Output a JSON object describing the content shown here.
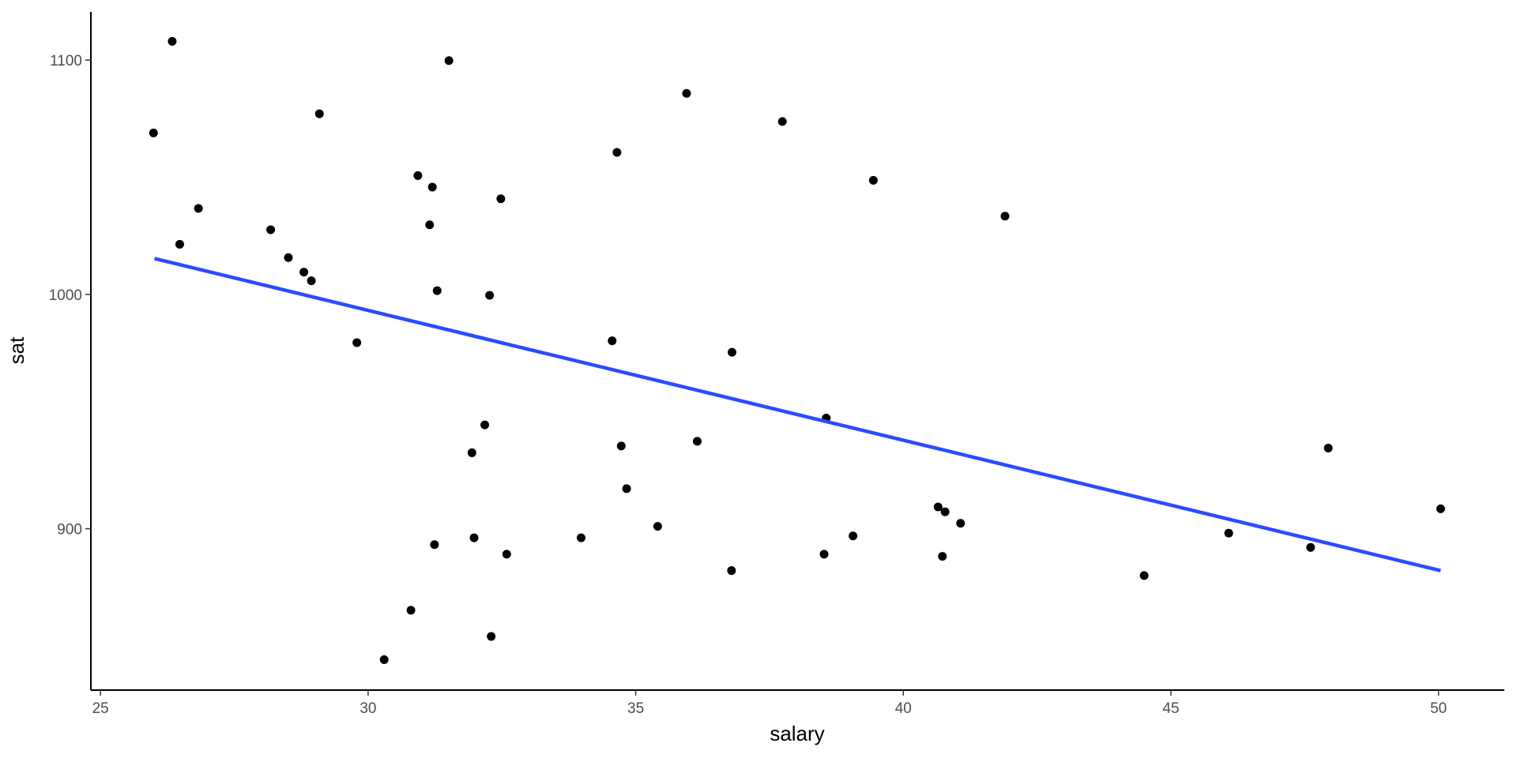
{
  "chart_data": {
    "type": "scatter",
    "x_label": "salary",
    "y_label": "sat",
    "xlim": [
      24.82,
      51.23
    ],
    "ylim": [
      831.1,
      1120.6
    ],
    "xticks": [
      25,
      30,
      35,
      40,
      45,
      50
    ],
    "yticks": [
      900,
      1000,
      1100
    ],
    "series": [
      {
        "type": "scatter",
        "color": "#000000",
        "x": [
          25.99,
          26.34,
          26.48,
          26.83,
          28.18,
          28.51,
          28.8,
          28.94,
          29.09,
          29.79,
          30.3,
          30.8,
          30.93,
          31.15,
          31.2,
          31.24,
          31.29,
          31.51,
          31.94,
          31.98,
          32.18,
          32.27,
          32.3,
          32.48,
          32.59,
          33.98,
          34.56,
          34.65,
          34.73,
          34.83,
          35.41,
          35.95,
          36.15,
          36.79,
          36.8,
          37.74,
          38.52,
          38.56,
          39.06,
          39.44,
          40.65,
          40.73,
          40.78,
          41.07,
          41.9,
          44.5,
          46.08,
          47.61,
          47.94,
          50.04
        ],
        "values": [
          1068.9,
          1108,
          1021.4,
          1036.7,
          1027.6,
          1015.7,
          1009.5,
          1005.8,
          1077.1,
          979.4,
          844.1,
          865.2,
          1050.7,
          1029.7,
          1045.8,
          893.2,
          1001.6,
          1099.8,
          932.4,
          896.1,
          944.3,
          999.6,
          854.0,
          1040.8,
          889.1,
          896.1,
          980.2,
          1060.6,
          935.3,
          917.1,
          901.0,
          1085.8,
          937.3,
          882.1,
          975.3,
          1073.8,
          889.1,
          947.2,
          896.9,
          1048.7,
          909.3,
          888.2,
          907.2,
          902.3,
          1033.4,
          880.0,
          898.1,
          892.0,
          934.4,
          908.5
        ]
      },
      {
        "type": "line",
        "color": "#2b4bff",
        "x": [
          26.01,
          50.04
        ],
        "values": [
          1015.3,
          882.1
        ]
      }
    ]
  }
}
